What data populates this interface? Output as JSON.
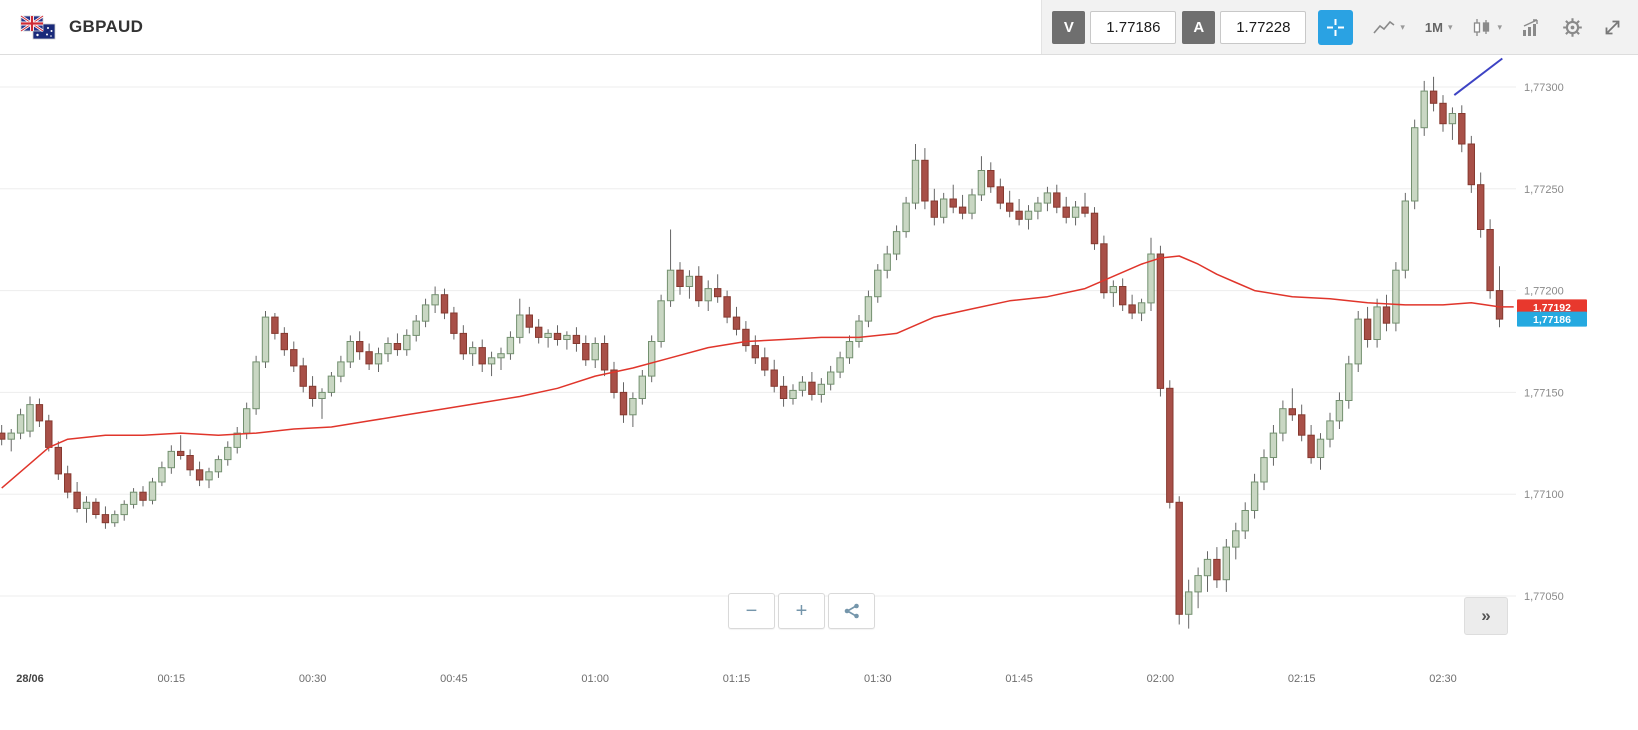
{
  "header": {
    "symbol": "GBPAUD",
    "sell": {
      "label": "V",
      "price": "1.77186"
    },
    "buy": {
      "label": "A",
      "price": "1.77228"
    },
    "timeframe": "1M",
    "caret": "▾"
  },
  "footer_controls": {
    "zoom_out": "−",
    "zoom_in": "+",
    "collapse": "»"
  },
  "icons": {
    "flag": "gbp-aud-flags",
    "crosshair": "crosshair",
    "chart_type": "line-chart",
    "chart_style": "candlestick",
    "indicator": "indicators",
    "settings": "gear",
    "fullscreen": "expand-arrows",
    "share": "share"
  },
  "chart_data": {
    "type": "candlestick",
    "instrument": "GBPAUD",
    "interval": "1M",
    "price_base": 1.77,
    "units": "pips over 1.77000 (e.g. 186 = 1.77186)",
    "ylim_pips": [
      20,
      320
    ],
    "x_range_minutes": [
      -3,
      158
    ],
    "grid": "horizontal only",
    "colors": {
      "bull_fill": "#c9d7c3",
      "bull_stroke": "#73906f",
      "bear_fill": "#a85048",
      "bear_stroke": "#86392f",
      "wick": "#555555",
      "ma": "#e0352b",
      "trendline": "#3d43c4",
      "grid": "#ededed",
      "ma_badge": "#e8382d",
      "last_badge": "#25a9e0",
      "accent_blue": "#2aa2e3"
    },
    "price_axis": [
      {
        "pips": 300,
        "label": "1,77300"
      },
      {
        "pips": 250,
        "label": "1,77250"
      },
      {
        "pips": 200,
        "label": "1,77200"
      },
      {
        "pips": 150,
        "label": "1,77150"
      },
      {
        "pips": 100,
        "label": "1,77100"
      },
      {
        "pips": 50,
        "label": "1,77050"
      }
    ],
    "time_axis": [
      {
        "minute": 0,
        "label": "28/06",
        "bold": true
      },
      {
        "minute": 15,
        "label": "00:15"
      },
      {
        "minute": 30,
        "label": "00:30"
      },
      {
        "minute": 45,
        "label": "00:45"
      },
      {
        "minute": 60,
        "label": "01:00"
      },
      {
        "minute": 75,
        "label": "01:15"
      },
      {
        "minute": 90,
        "label": "01:30"
      },
      {
        "minute": 105,
        "label": "01:45"
      },
      {
        "minute": 120,
        "label": "02:00"
      },
      {
        "minute": 135,
        "label": "02:15"
      },
      {
        "minute": 150,
        "label": "02:30"
      }
    ],
    "badges": {
      "ma_value": {
        "pips": 192,
        "label": "1,77192",
        "color": "#e8382d"
      },
      "last_price": {
        "pips": 186,
        "label": "1,77186",
        "color": "#25a9e0"
      }
    },
    "start_minute": -3,
    "candles": [
      [
        130,
        134,
        124,
        127
      ],
      [
        127,
        132,
        121,
        130
      ],
      [
        130,
        142,
        127,
        139
      ],
      [
        131,
        148,
        128,
        144
      ],
      [
        144,
        147,
        133,
        136
      ],
      [
        136,
        139,
        121,
        123
      ],
      [
        123,
        126,
        107,
        110
      ],
      [
        110,
        114,
        98,
        101
      ],
      [
        101,
        106,
        91,
        93
      ],
      [
        93,
        99,
        86,
        96
      ],
      [
        96,
        98,
        88,
        90
      ],
      [
        90,
        94,
        83,
        86
      ],
      [
        86,
        92,
        84,
        90
      ],
      [
        90,
        97,
        87,
        95
      ],
      [
        95,
        103,
        93,
        101
      ],
      [
        101,
        104,
        94,
        97
      ],
      [
        97,
        108,
        95,
        106
      ],
      [
        106,
        116,
        104,
        113
      ],
      [
        113,
        124,
        110,
        121
      ],
      [
        121,
        129,
        117,
        119
      ],
      [
        119,
        122,
        109,
        112
      ],
      [
        112,
        116,
        104,
        107
      ],
      [
        107,
        113,
        103,
        111
      ],
      [
        111,
        119,
        108,
        117
      ],
      [
        117,
        126,
        114,
        123
      ],
      [
        123,
        133,
        120,
        130
      ],
      [
        130,
        145,
        127,
        142
      ],
      [
        142,
        168,
        139,
        165
      ],
      [
        165,
        190,
        162,
        187
      ],
      [
        187,
        189,
        176,
        179
      ],
      [
        179,
        182,
        168,
        171
      ],
      [
        171,
        175,
        160,
        163
      ],
      [
        163,
        167,
        150,
        153
      ],
      [
        153,
        158,
        143,
        147
      ],
      [
        147,
        152,
        137,
        150
      ],
      [
        150,
        160,
        148,
        158
      ],
      [
        158,
        168,
        155,
        165
      ],
      [
        165,
        178,
        162,
        175
      ],
      [
        175,
        180,
        166,
        170
      ],
      [
        170,
        174,
        161,
        164
      ],
      [
        164,
        172,
        160,
        169
      ],
      [
        169,
        177,
        165,
        174
      ],
      [
        174,
        179,
        168,
        171
      ],
      [
        171,
        181,
        168,
        178
      ],
      [
        178,
        188,
        175,
        185
      ],
      [
        185,
        196,
        182,
        193
      ],
      [
        193,
        202,
        189,
        198
      ],
      [
        198,
        201,
        186,
        189
      ],
      [
        189,
        192,
        176,
        179
      ],
      [
        179,
        183,
        166,
        169
      ],
      [
        169,
        175,
        163,
        172
      ],
      [
        172,
        176,
        160,
        164
      ],
      [
        164,
        170,
        158,
        167
      ],
      [
        167,
        172,
        161,
        169
      ],
      [
        169,
        180,
        166,
        177
      ],
      [
        177,
        196,
        174,
        188
      ],
      [
        188,
        192,
        179,
        182
      ],
      [
        182,
        186,
        174,
        177
      ],
      [
        177,
        181,
        172,
        179
      ],
      [
        179,
        183,
        173,
        176
      ],
      [
        176,
        180,
        171,
        178
      ],
      [
        178,
        182,
        170,
        174
      ],
      [
        174,
        178,
        163,
        166
      ],
      [
        166,
        177,
        162,
        174
      ],
      [
        174,
        178,
        158,
        161
      ],
      [
        161,
        165,
        147,
        150
      ],
      [
        150,
        155,
        135,
        139
      ],
      [
        139,
        150,
        133,
        147
      ],
      [
        147,
        161,
        144,
        158
      ],
      [
        158,
        178,
        155,
        175
      ],
      [
        175,
        198,
        172,
        195
      ],
      [
        195,
        230,
        192,
        210
      ],
      [
        210,
        214,
        198,
        202
      ],
      [
        202,
        210,
        196,
        207
      ],
      [
        207,
        212,
        192,
        195
      ],
      [
        195,
        205,
        190,
        201
      ],
      [
        201,
        208,
        194,
        197
      ],
      [
        197,
        200,
        184,
        187
      ],
      [
        187,
        192,
        178,
        181
      ],
      [
        181,
        185,
        170,
        173
      ],
      [
        173,
        178,
        164,
        167
      ],
      [
        167,
        172,
        158,
        161
      ],
      [
        161,
        166,
        150,
        153
      ],
      [
        153,
        158,
        143,
        147
      ],
      [
        147,
        154,
        144,
        151
      ],
      [
        151,
        158,
        148,
        155
      ],
      [
        155,
        160,
        146,
        149
      ],
      [
        149,
        157,
        145,
        154
      ],
      [
        154,
        163,
        151,
        160
      ],
      [
        160,
        170,
        157,
        167
      ],
      [
        167,
        178,
        164,
        175
      ],
      [
        175,
        188,
        172,
        185
      ],
      [
        185,
        200,
        182,
        197
      ],
      [
        197,
        213,
        194,
        210
      ],
      [
        210,
        222,
        206,
        218
      ],
      [
        218,
        232,
        215,
        229
      ],
      [
        229,
        246,
        226,
        243
      ],
      [
        243,
        272,
        240,
        264
      ],
      [
        264,
        270,
        240,
        244
      ],
      [
        244,
        250,
        232,
        236
      ],
      [
        236,
        248,
        233,
        245
      ],
      [
        245,
        252,
        238,
        241
      ],
      [
        241,
        247,
        235,
        238
      ],
      [
        238,
        250,
        235,
        247
      ],
      [
        247,
        266,
        244,
        259
      ],
      [
        259,
        263,
        248,
        251
      ],
      [
        251,
        255,
        240,
        243
      ],
      [
        243,
        249,
        236,
        239
      ],
      [
        239,
        245,
        232,
        235
      ],
      [
        235,
        242,
        230,
        239
      ],
      [
        239,
        246,
        235,
        243
      ],
      [
        243,
        251,
        239,
        248
      ],
      [
        248,
        252,
        238,
        241
      ],
      [
        241,
        246,
        233,
        236
      ],
      [
        236,
        244,
        232,
        241
      ],
      [
        241,
        248,
        236,
        238
      ],
      [
        238,
        241,
        220,
        223
      ],
      [
        223,
        227,
        196,
        199
      ],
      [
        199,
        205,
        192,
        202
      ],
      [
        202,
        206,
        190,
        193
      ],
      [
        193,
        198,
        186,
        189
      ],
      [
        189,
        196,
        185,
        194
      ],
      [
        194,
        226,
        190,
        218
      ],
      [
        218,
        222,
        148,
        152
      ],
      [
        152,
        156,
        93,
        96
      ],
      [
        96,
        99,
        36,
        41
      ],
      [
        41,
        58,
        34,
        52
      ],
      [
        52,
        64,
        44,
        60
      ],
      [
        60,
        72,
        52,
        68
      ],
      [
        68,
        74,
        54,
        58
      ],
      [
        58,
        78,
        52,
        74
      ],
      [
        74,
        86,
        68,
        82
      ],
      [
        82,
        96,
        78,
        92
      ],
      [
        92,
        110,
        88,
        106
      ],
      [
        106,
        122,
        102,
        118
      ],
      [
        118,
        134,
        114,
        130
      ],
      [
        130,
        146,
        126,
        142
      ],
      [
        142,
        152,
        136,
        139
      ],
      [
        139,
        144,
        126,
        129
      ],
      [
        129,
        134,
        115,
        118
      ],
      [
        118,
        130,
        112,
        127
      ],
      [
        127,
        140,
        123,
        136
      ],
      [
        136,
        150,
        132,
        146
      ],
      [
        146,
        168,
        142,
        164
      ],
      [
        164,
        190,
        160,
        186
      ],
      [
        186,
        192,
        172,
        176
      ],
      [
        176,
        196,
        172,
        192
      ],
      [
        192,
        198,
        180,
        184
      ],
      [
        184,
        214,
        180,
        210
      ],
      [
        210,
        248,
        206,
        244
      ],
      [
        244,
        284,
        240,
        280
      ],
      [
        280,
        303,
        276,
        298
      ],
      [
        298,
        305,
        288,
        292
      ],
      [
        292,
        296,
        278,
        282
      ],
      [
        282,
        290,
        274,
        287
      ],
      [
        287,
        291,
        268,
        272
      ],
      [
        272,
        276,
        248,
        252
      ],
      [
        252,
        258,
        226,
        230
      ],
      [
        230,
        235,
        196,
        200
      ],
      [
        200,
        212,
        182,
        186
      ]
    ],
    "ma_points": [
      [
        -3,
        103
      ],
      [
        0,
        115
      ],
      [
        2,
        123
      ],
      [
        4,
        127
      ],
      [
        8,
        129
      ],
      [
        12,
        129
      ],
      [
        16,
        130
      ],
      [
        20,
        129
      ],
      [
        24,
        130
      ],
      [
        28,
        132
      ],
      [
        32,
        133
      ],
      [
        36,
        136
      ],
      [
        40,
        139
      ],
      [
        44,
        142
      ],
      [
        48,
        145
      ],
      [
        52,
        148
      ],
      [
        56,
        152
      ],
      [
        60,
        158
      ],
      [
        64,
        162
      ],
      [
        68,
        167
      ],
      [
        72,
        172
      ],
      [
        76,
        175
      ],
      [
        80,
        176
      ],
      [
        84,
        177
      ],
      [
        88,
        177
      ],
      [
        92,
        179
      ],
      [
        96,
        187
      ],
      [
        100,
        191
      ],
      [
        104,
        195
      ],
      [
        108,
        197
      ],
      [
        112,
        201
      ],
      [
        115,
        207
      ],
      [
        118,
        213
      ],
      [
        120,
        216
      ],
      [
        122,
        217
      ],
      [
        124,
        213
      ],
      [
        126,
        208
      ],
      [
        128,
        204
      ],
      [
        130,
        200
      ],
      [
        134,
        197
      ],
      [
        138,
        196
      ],
      [
        142,
        194
      ],
      [
        146,
        193
      ],
      [
        150,
        193
      ],
      [
        153,
        194
      ],
      [
        156,
        192
      ],
      [
        157.5,
        192
      ]
    ],
    "trendline": [
      [
        151.2,
        296
      ],
      [
        156.3,
        314
      ]
    ]
  }
}
